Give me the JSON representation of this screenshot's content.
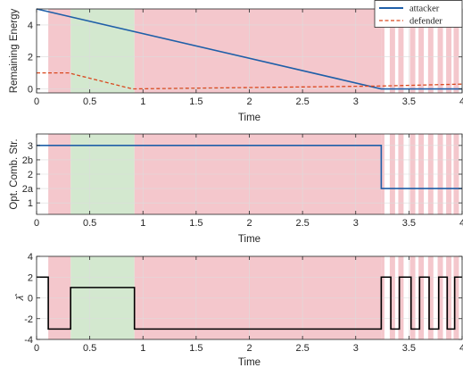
{
  "chart_data": [
    {
      "type": "line",
      "xlabel": "Time",
      "ylabel": "Remaining Energy",
      "xlim": [
        0,
        4
      ],
      "ylim": [
        -0.25,
        5
      ],
      "xticks": [
        "0",
        "0.5",
        "1",
        "1.5",
        "2",
        "2.5",
        "3",
        "3.5",
        "4"
      ],
      "yticks": [
        {
          "value": 0,
          "label": "0"
        },
        {
          "value": 2,
          "label": "2"
        },
        {
          "value": 4,
          "label": "4"
        }
      ],
      "grid": true,
      "legend": {
        "position": "top-right"
      },
      "series": [
        {
          "name": "attacker",
          "color": "#1f5fa8",
          "style": "solid",
          "x": [
            0,
            3.24,
            4.0
          ],
          "y": [
            5.0,
            0.0,
            0.0
          ]
        },
        {
          "name": "defender",
          "color": "#d9481f",
          "style": "dashed",
          "x": [
            0,
            0.1,
            0.3,
            0.9,
            3.24,
            4.0
          ],
          "y": [
            1.0,
            1.0,
            1.0,
            0.0,
            0.18,
            0.3
          ]
        }
      ]
    },
    {
      "type": "line",
      "xlabel": "Time",
      "ylabel": "Opt. Comb. Str.",
      "xlim": [
        0,
        4
      ],
      "ylim": [
        0.6,
        3.4
      ],
      "xticks": [
        "0",
        "0.5",
        "1",
        "1.5",
        "2",
        "2.5",
        "3",
        "3.5",
        "4"
      ],
      "yticks": [
        {
          "value": 1,
          "label": "1"
        },
        {
          "value": 1.5,
          "label": "2a"
        },
        {
          "value": 2,
          "label": "2"
        },
        {
          "value": 2.5,
          "label": "2b"
        },
        {
          "value": 3,
          "label": "3"
        }
      ],
      "grid": true,
      "series": [
        {
          "color": "#1f5fa8",
          "style": "solid",
          "x": [
            0,
            3.24,
            3.24,
            4.0
          ],
          "y": [
            3,
            3,
            1.5,
            1.5
          ]
        }
      ]
    },
    {
      "type": "line",
      "xlabel": "Time",
      "ylabel": "λ̂",
      "xlim": [
        0,
        4
      ],
      "ylim": [
        -4,
        4
      ],
      "xticks": [
        "0",
        "0.5",
        "1",
        "1.5",
        "2",
        "2.5",
        "3",
        "3.5",
        "4"
      ],
      "yticks": [
        {
          "value": -4,
          "label": "-4"
        },
        {
          "value": -2,
          "label": "-2"
        },
        {
          "value": 0,
          "label": "0"
        },
        {
          "value": 2,
          "label": "2"
        },
        {
          "value": 4,
          "label": "4"
        }
      ],
      "grid": true,
      "series": [
        {
          "color": "#000000",
          "style": "solid",
          "x": [
            0,
            0.11,
            0.11,
            0.32,
            0.32,
            0.92,
            0.92,
            3.24,
            3.24,
            3.33,
            3.33,
            3.41,
            3.41,
            3.52,
            3.52,
            3.6,
            3.6,
            3.69,
            3.69,
            3.78,
            3.78,
            3.86,
            3.86,
            3.93,
            3.93,
            4.0
          ],
          "y": [
            2,
            2,
            -3,
            -3,
            1,
            1,
            -3,
            -3,
            2,
            2,
            -3,
            -3,
            2,
            2,
            -3,
            -3,
            2,
            2,
            -3,
            -3,
            2,
            2,
            -3,
            -3,
            2,
            2
          ]
        }
      ]
    }
  ],
  "regions": {
    "red_color": "#f4c7cc",
    "green_color": "#d3e8cf",
    "green": [
      [
        0.32,
        0.92
      ]
    ],
    "red": [
      [
        0.11,
        0.32
      ],
      [
        0.92,
        3.24
      ],
      [
        3.24,
        3.27
      ],
      [
        3.32,
        3.37
      ],
      [
        3.4,
        3.45
      ],
      [
        3.51,
        3.56
      ],
      [
        3.59,
        3.64
      ],
      [
        3.68,
        3.73
      ],
      [
        3.77,
        3.82
      ],
      [
        3.85,
        3.9
      ],
      [
        3.92,
        3.97
      ]
    ]
  }
}
